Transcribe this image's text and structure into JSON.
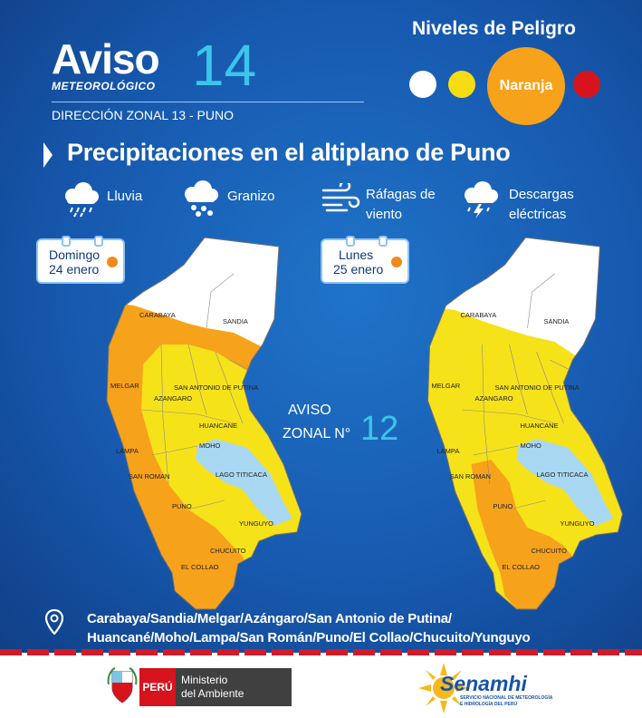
{
  "header": {
    "aviso": "Aviso",
    "meteorologico": "METEOROLÓGICO",
    "number": "14",
    "direccion": "DIRECCIÓN ZONAL 13 - PUNO"
  },
  "danger_levels": {
    "title": "Niveles de Peligro",
    "levels": [
      {
        "color": "#ffffff"
      },
      {
        "color": "#f6dc12"
      },
      {
        "label": "Naranja",
        "color": "#f7a21b",
        "active": true
      },
      {
        "color": "#d7141e"
      }
    ]
  },
  "headline": "Precipitaciones en el altiplano de Puno",
  "hazards": [
    {
      "icon": "rain-cloud-icon",
      "lines": [
        "Lluvia"
      ]
    },
    {
      "icon": "hail-cloud-icon",
      "lines": [
        "Granizo"
      ]
    },
    {
      "icon": "wind-gust-icon",
      "lines": [
        "Ráfagas de",
        "viento"
      ]
    },
    {
      "icon": "lightning-cloud-icon",
      "lines": [
        "Descargas",
        "eléctricas"
      ]
    }
  ],
  "maps": [
    {
      "day": "Domingo",
      "date": "24 enero"
    },
    {
      "day": "Lunes",
      "date": "25 enero"
    }
  ],
  "provinces_on_map": [
    "CARABAYA",
    "SANDIA",
    "MELGAR",
    "AZANGARO",
    "SAN ANTONIO DE PUTINA",
    "HUANCANE",
    "MOHO",
    "LAMPA",
    "SAN ROMAN",
    "PUNO",
    "CHUCUITO",
    "EL COLLAO",
    "YUNGUYO",
    "LAGO TITICACA"
  ],
  "zonal_notice": {
    "line1": "AVISO",
    "line2": "ZONAL N°",
    "number": "12"
  },
  "provinces_text": {
    "line1": "Carabaya/Sandia/Melgar/Azángaro/San Antonio de Putina/",
    "line2": "Huancané/Moho/Lampa/San Román/Puno/El Collao/Chucuito/Yunguyo"
  },
  "footer": {
    "peru": "PERÚ",
    "ministry_line1": "Ministerio",
    "ministry_line2": "del Ambiente",
    "senamhi": "Senamhi",
    "senamhi_sub1": "SERVICIO NACIONAL DE METEOROLOGÍA",
    "senamhi_sub2": "E HIDROLOGÍA DEL PERÚ"
  },
  "colors": {
    "background": "#175ab0",
    "accent_cyan": "#3cc5e8",
    "yellow_level": "#f6e219",
    "orange_level": "#f7a21b",
    "white_level": "#ffffff",
    "lake": "#a9d8f2"
  }
}
